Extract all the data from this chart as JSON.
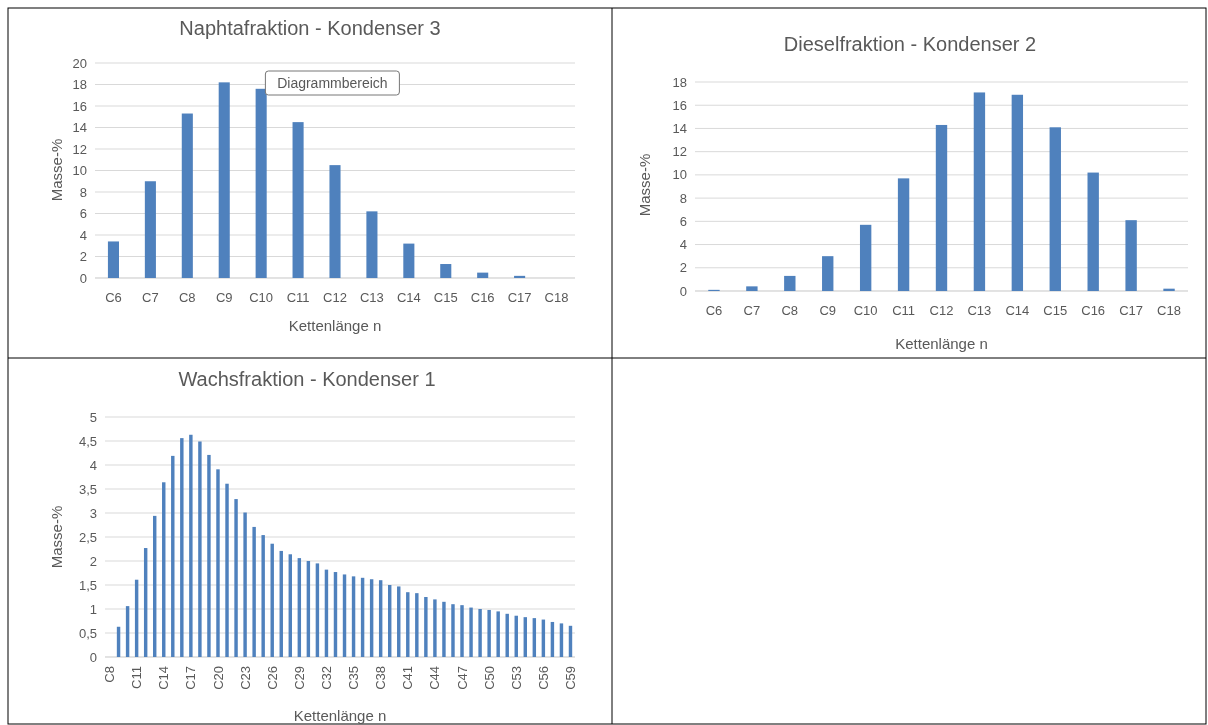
{
  "chart_data": [
    {
      "type": "bar",
      "title": "Naphtafraktion - Kondenser 3",
      "xlabel": "Kettenlänge n",
      "ylabel": "Masse-%",
      "color": "#4f81bd",
      "grid": "y",
      "ylim": [
        0,
        20
      ],
      "yticks": [
        0,
        2,
        4,
        6,
        8,
        10,
        12,
        14,
        16,
        18,
        20
      ],
      "categories": [
        "C6",
        "C7",
        "C8",
        "C9",
        "C10",
        "C11",
        "C12",
        "C13",
        "C14",
        "C15",
        "C16",
        "C17",
        "C18"
      ],
      "values": [
        3.4,
        9.0,
        15.3,
        18.2,
        17.6,
        14.5,
        10.5,
        6.2,
        3.2,
        1.3,
        0.5,
        0.2,
        0
      ],
      "annotations": [
        "Diagrammbereich"
      ]
    },
    {
      "type": "bar",
      "title": "Dieselfraktion - Kondenser 2",
      "xlabel": "Kettenlänge n",
      "ylabel": "Masse-%",
      "color": "#4f81bd",
      "grid": "y",
      "ylim": [
        0,
        18
      ],
      "yticks": [
        0,
        2,
        4,
        6,
        8,
        10,
        12,
        14,
        16,
        18
      ],
      "categories": [
        "C6",
        "C7",
        "C8",
        "C9",
        "C10",
        "C11",
        "C12",
        "C13",
        "C14",
        "C15",
        "C16",
        "C17",
        "C18"
      ],
      "values": [
        0.1,
        0.4,
        1.3,
        3.0,
        5.7,
        9.7,
        14.3,
        17.1,
        16.9,
        14.1,
        10.2,
        6.1,
        0.2
      ]
    },
    {
      "type": "bar",
      "title": "Wachsfraktion - Kondenser 1",
      "xlabel": "Kettenlänge n",
      "ylabel": "Masse-%",
      "color": "#4f81bd",
      "grid": "y",
      "ylim": [
        0,
        5
      ],
      "yticks": [
        0,
        {
          "value": 0.5,
          "label": "0,5"
        },
        1,
        {
          "value": 1.5,
          "label": "1,5"
        },
        2,
        {
          "value": 2.5,
          "label": "2,5"
        },
        3,
        {
          "value": 3.5,
          "label": "3,5"
        },
        4,
        {
          "value": 4.5,
          "label": "4,5"
        },
        5
      ],
      "categories": [
        "C8",
        null,
        null,
        "C11",
        null,
        null,
        "C14",
        null,
        null,
        "C17",
        null,
        null,
        "C20",
        null,
        null,
        "C23",
        null,
        null,
        "C26",
        null,
        null,
        "C29",
        null,
        null,
        "C32",
        null,
        null,
        "C35",
        null,
        null,
        "C38",
        null,
        null,
        "C41",
        null,
        null,
        "C44",
        null,
        null,
        "C47",
        null,
        null,
        "C50",
        null,
        null,
        "C53",
        null,
        null,
        "C56",
        null,
        null,
        "C59"
      ],
      "values": [
        0,
        0.63,
        1.06,
        1.61,
        2.27,
        2.94,
        3.64,
        4.19,
        4.56,
        4.63,
        4.49,
        4.21,
        3.91,
        3.61,
        3.29,
        3.01,
        2.71,
        2.54,
        2.36,
        2.21,
        2.14,
        2.06,
        2.0,
        1.95,
        1.82,
        1.77,
        1.72,
        1.68,
        1.65,
        1.62,
        1.6,
        1.5,
        1.47,
        1.35,
        1.33,
        1.25,
        1.2,
        1.15,
        1.1,
        1.08,
        1.03,
        1.0,
        0.98,
        0.95,
        0.9,
        0.86,
        0.83,
        0.81,
        0.78,
        0.73,
        0.7,
        0.65
      ]
    }
  ]
}
